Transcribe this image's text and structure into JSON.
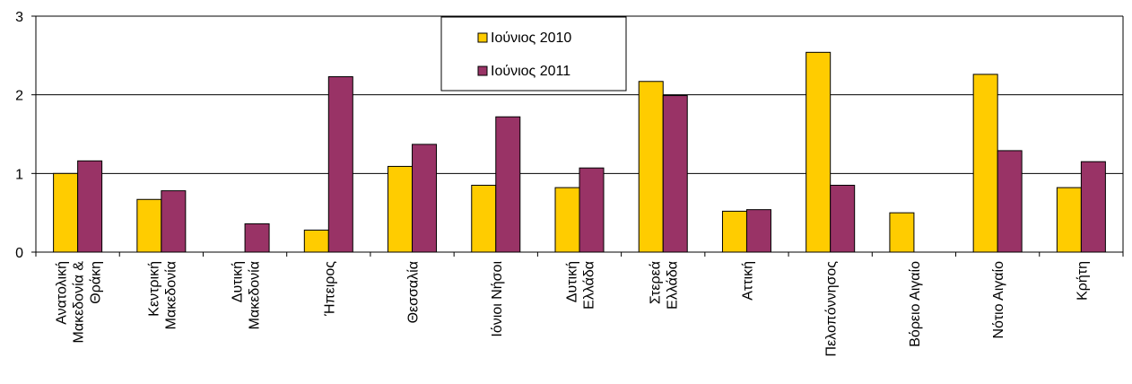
{
  "chart_data": {
    "type": "bar",
    "categories": [
      [
        "Ανατολική",
        "Μακεδονία &",
        "Θράκη"
      ],
      [
        "Κεντρική",
        "Μακεδονία"
      ],
      [
        "Δυτική",
        "Μακεδονία"
      ],
      [
        "Ήπειρος"
      ],
      [
        "Θεσσαλία"
      ],
      [
        "Ιόνιοι Νήσοι"
      ],
      [
        "Δυτική",
        "Ελλάδα"
      ],
      [
        "Στερεά",
        "Ελλάδα"
      ],
      [
        "Αττική"
      ],
      [
        "Πελοπόννησος"
      ],
      [
        "Βόρειο Αιγαίο"
      ],
      [
        "Νότιο Αιγαίο"
      ],
      [
        "Κρήτη"
      ]
    ],
    "series": [
      {
        "name": "Ιούνιος 2010",
        "color": "#FFCC00",
        "values": [
          1.0,
          0.67,
          0,
          0.28,
          1.09,
          0.85,
          0.82,
          2.17,
          0.52,
          2.54,
          0.5,
          2.26,
          0.82
        ]
      },
      {
        "name": "Ιούνιος 2011",
        "color": "#993366",
        "values": [
          1.16,
          0.78,
          0.36,
          2.23,
          1.37,
          1.72,
          1.07,
          1.99,
          0.54,
          0.85,
          0,
          1.29,
          1.15
        ]
      }
    ],
    "ylim": [
      0,
      3
    ],
    "yticks": [
      0,
      1,
      2,
      3
    ],
    "grid": true,
    "legend_position": "top-center"
  }
}
